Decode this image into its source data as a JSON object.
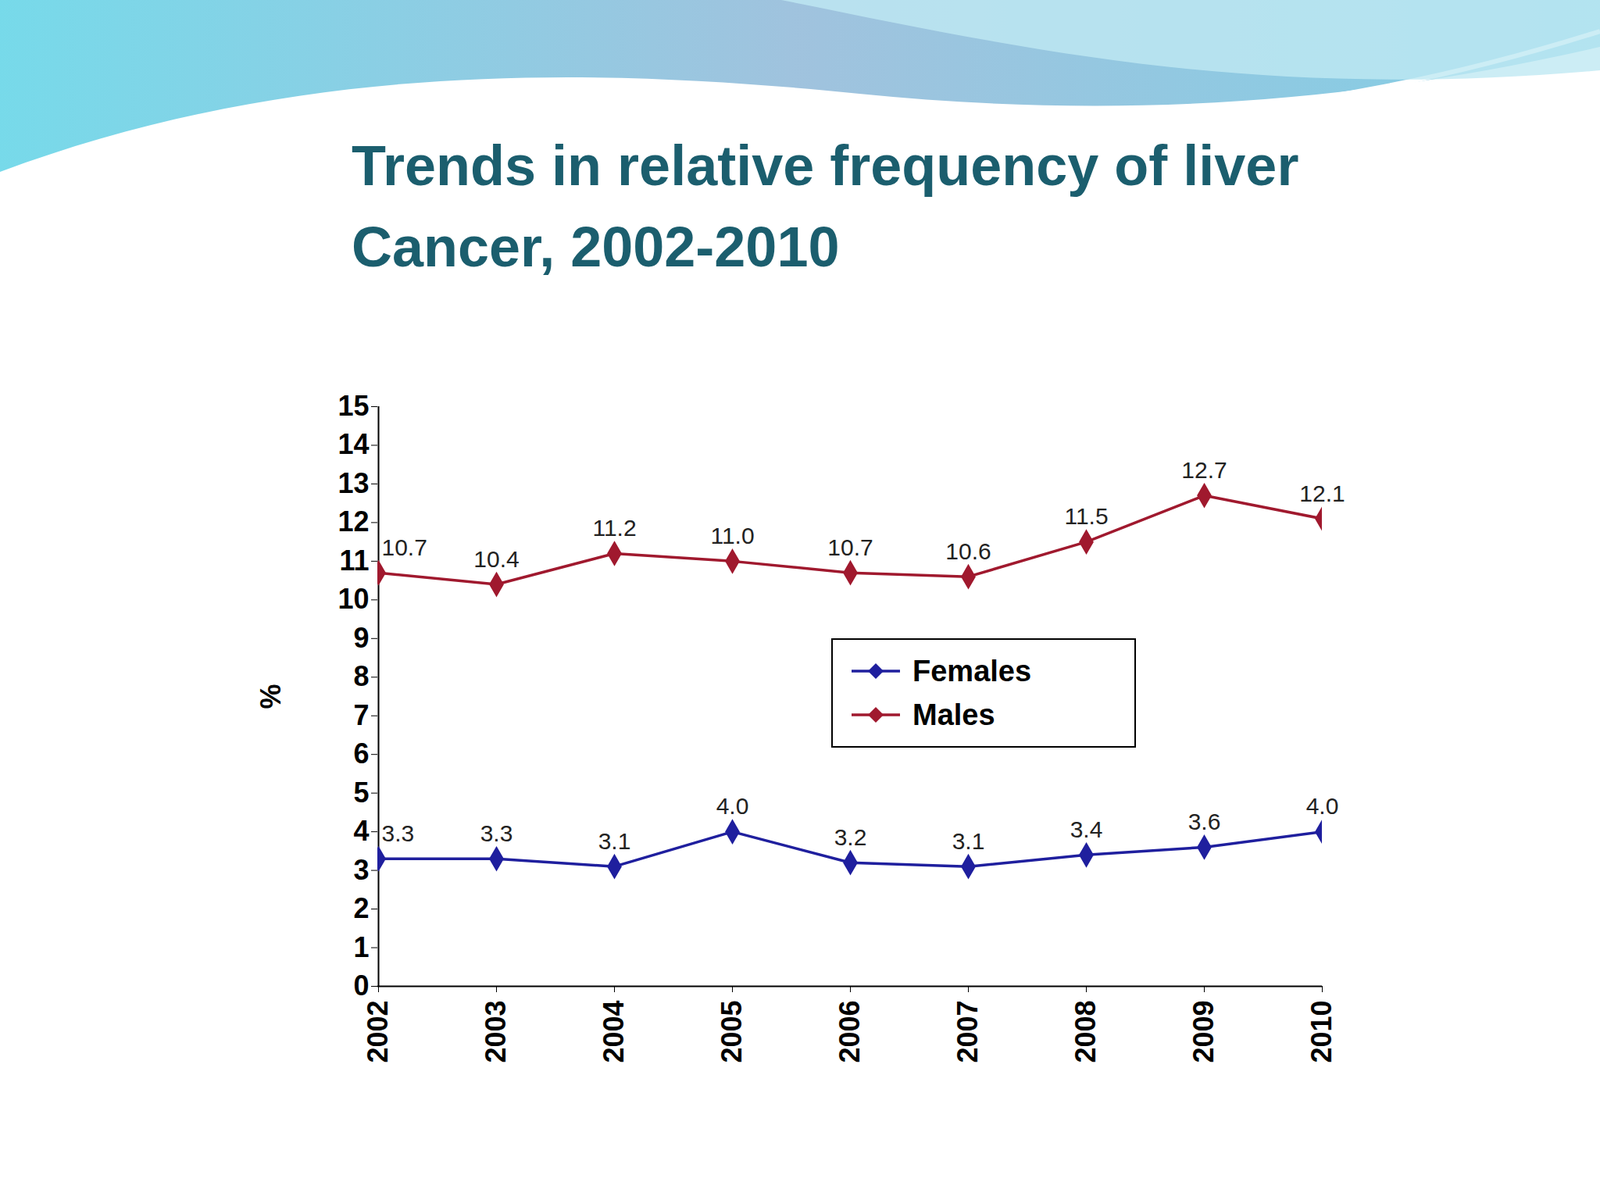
{
  "chart_data": {
    "type": "line",
    "title": "Trends in relative frequency of liver Cancer, 2002-2010",
    "y_label": "%",
    "categories": [
      "2002",
      "2003",
      "2004",
      "2005",
      "2006",
      "2007",
      "2008",
      "2009",
      "2010"
    ],
    "series": [
      {
        "name": "Females",
        "color": "#1f1f9e",
        "marker": "diamond",
        "line_style": "solid",
        "values": [
          3.3,
          3.3,
          3.1,
          4.0,
          3.2,
          3.1,
          3.4,
          3.6,
          4.0
        ],
        "value_labels": [
          "3.3",
          "3.3",
          "3.1",
          "4.0",
          "3.2",
          "3.1",
          "3.4",
          "3.6",
          "4.0"
        ]
      },
      {
        "name": "Males",
        "color": "#a0192e",
        "marker": "diamond",
        "line_style": "solid",
        "values": [
          10.7,
          10.4,
          11.2,
          11.0,
          10.7,
          10.6,
          11.5,
          12.7,
          12.1
        ],
        "value_labels": [
          "10.7",
          "10.4",
          "11.2",
          "11.0",
          "10.7",
          "10.6",
          "11.5",
          "12.7",
          "12.1"
        ]
      }
    ],
    "ylim": [
      0,
      15
    ],
    "yticks": [
      0,
      1,
      2,
      3,
      4,
      5,
      6,
      7,
      8,
      9,
      10,
      11,
      12,
      13,
      14,
      15
    ],
    "grid": false,
    "legend": "right",
    "data_labels": true
  }
}
